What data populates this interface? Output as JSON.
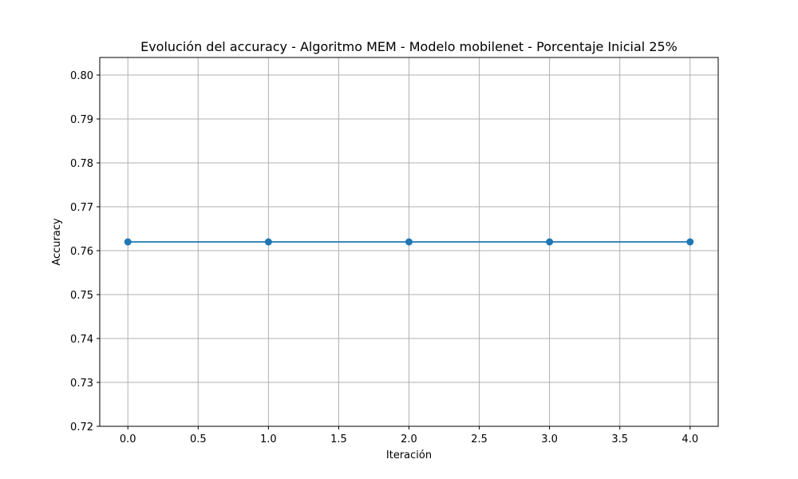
{
  "chart_data": {
    "type": "line",
    "title": "Evolución del accuracy - Algoritmo MEM - Modelo mobilenet - Porcentaje Inicial 25%",
    "xlabel": "Iteración",
    "ylabel": "Accuracy",
    "x": [
      0,
      1,
      2,
      3,
      4
    ],
    "series": [
      {
        "values": [
          0.762,
          0.762,
          0.762,
          0.762,
          0.762
        ],
        "color": "#1f77b4",
        "marker": "circle"
      }
    ],
    "xlim": [
      -0.2,
      4.2
    ],
    "ylim": [
      0.72,
      0.804
    ],
    "xticks": [
      0.0,
      0.5,
      1.0,
      1.5,
      2.0,
      2.5,
      3.0,
      3.5,
      4.0
    ],
    "xtick_labels": [
      "0.0",
      "0.5",
      "1.0",
      "1.5",
      "2.0",
      "2.5",
      "3.0",
      "3.5",
      "4.0"
    ],
    "yticks": [
      0.72,
      0.73,
      0.74,
      0.75,
      0.76,
      0.77,
      0.78,
      0.79,
      0.8
    ],
    "ytick_labels": [
      "0.72",
      "0.73",
      "0.74",
      "0.75",
      "0.76",
      "0.77",
      "0.78",
      "0.79",
      "0.80"
    ],
    "grid": true
  }
}
